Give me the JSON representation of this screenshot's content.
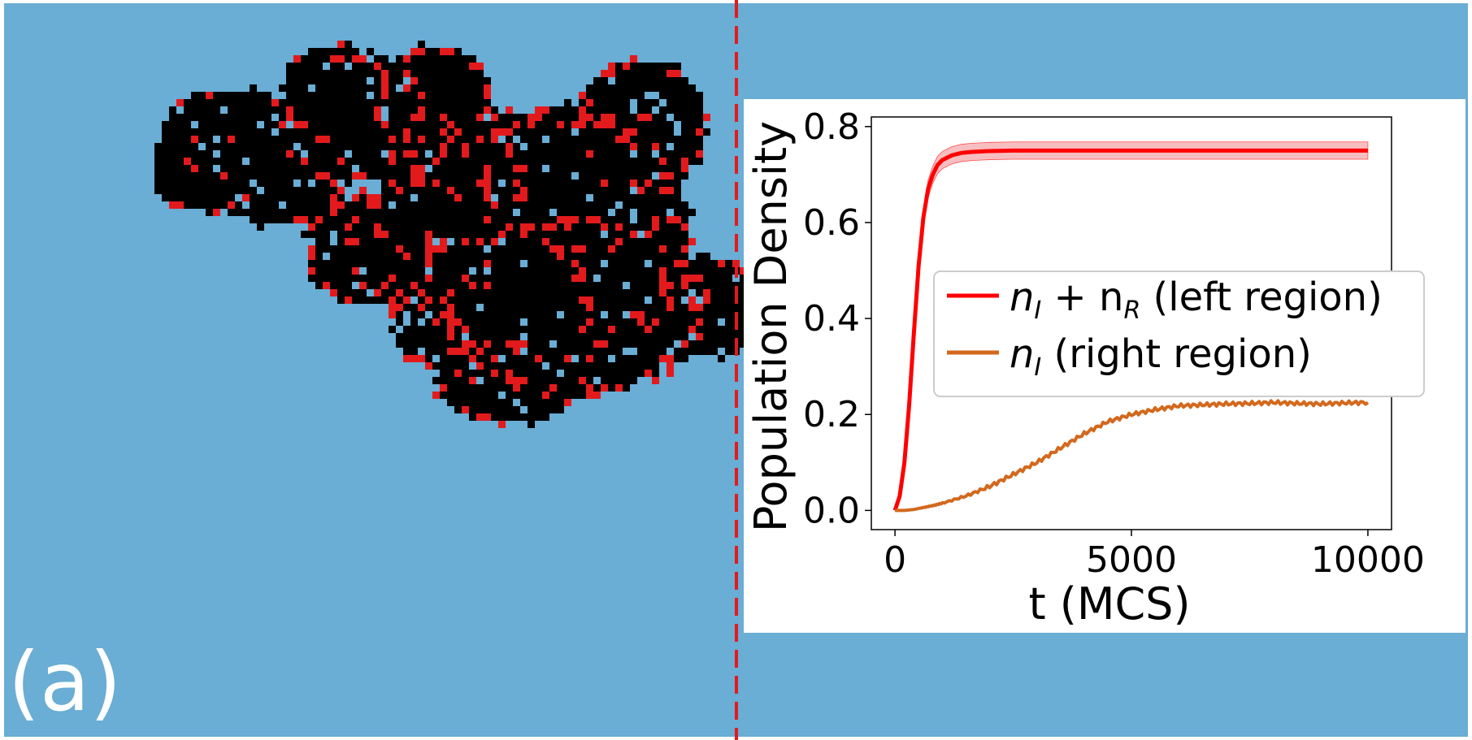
{
  "figure": {
    "panel_label": "(a)",
    "background_color": "#6aadd5",
    "cluster_color": "#000000",
    "infected_color": "#e31a1c",
    "divider_color": "#e31a1c"
  },
  "chart_data": {
    "type": "line",
    "xlabel": "t (MCS)",
    "ylabel": "Population Density",
    "xlim": [
      -500,
      10500
    ],
    "ylim": [
      -0.04,
      0.82
    ],
    "xticks": [
      0,
      5000,
      10000
    ],
    "xtick_labels": [
      "0",
      "5000",
      "10000"
    ],
    "yticks": [
      0.0,
      0.2,
      0.4,
      0.6,
      0.8
    ],
    "ytick_labels": [
      "0.0",
      "0.2",
      "0.4",
      "0.6",
      "0.8"
    ],
    "grid": false,
    "legend_position": "center-right",
    "series": [
      {
        "label_main": "n",
        "label_sub1": "I",
        "label_plus": " + n",
        "label_sub2": "R",
        "label_rest": " (left region)",
        "color": "#ff0000",
        "band_color": "#f4a3a8",
        "x": [
          0,
          100,
          200,
          300,
          400,
          500,
          600,
          700,
          800,
          900,
          1000,
          1200,
          1400,
          1600,
          1800,
          2000,
          2500,
          3000,
          4000,
          5000,
          6000,
          7000,
          8000,
          9000,
          10000
        ],
        "y": [
          0.0,
          0.03,
          0.1,
          0.22,
          0.37,
          0.51,
          0.61,
          0.67,
          0.7,
          0.72,
          0.73,
          0.74,
          0.745,
          0.747,
          0.748,
          0.749,
          0.75,
          0.75,
          0.75,
          0.75,
          0.75,
          0.75,
          0.75,
          0.75,
          0.75
        ],
        "band": 0.018
      },
      {
        "label_main": "n",
        "label_sub1": "I",
        "label_rest": " (right region)",
        "color": "#d2691e",
        "x": [
          0,
          200,
          400,
          600,
          800,
          1000,
          1500,
          2000,
          2500,
          3000,
          3500,
          4000,
          4500,
          5000,
          5500,
          6000,
          6500,
          7000,
          7500,
          8000,
          8500,
          9000,
          9500,
          10000
        ],
        "y": [
          0.0,
          0.0,
          0.002,
          0.006,
          0.01,
          0.015,
          0.03,
          0.05,
          0.075,
          0.1,
          0.13,
          0.16,
          0.185,
          0.2,
          0.21,
          0.218,
          0.22,
          0.222,
          0.223,
          0.225,
          0.223,
          0.222,
          0.224,
          0.225
        ]
      }
    ]
  }
}
